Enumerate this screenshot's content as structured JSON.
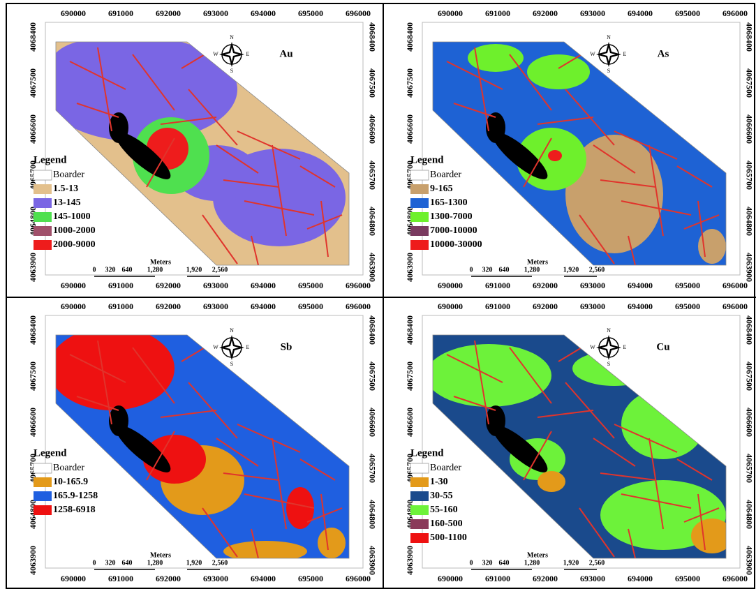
{
  "x_ticks": [
    690000,
    691000,
    692000,
    693000,
    694000,
    695000,
    696000
  ],
  "y_ticks": [
    4068400,
    4067500,
    4066600,
    4065700,
    4064800,
    4063900
  ],
  "scale_bar": {
    "unit": "Meters",
    "labels": [
      "0",
      "320",
      "640",
      "1,280",
      "1,920",
      "2,560"
    ]
  },
  "compass": {
    "north": "N",
    "east": "E",
    "south": "S",
    "west": "W"
  },
  "panels": [
    {
      "title": "Au",
      "legend": {
        "title": "Legend",
        "items": [
          {
            "label": "Boarder",
            "color": "#ffffff"
          },
          {
            "label": "1.5-13",
            "color": "#e3c08c"
          },
          {
            "label": "13-145",
            "color": "#7a66e4"
          },
          {
            "label": "145-1000",
            "color": "#4fe04f"
          },
          {
            "label": "1000-2000",
            "color": "#a0506a"
          },
          {
            "label": "2000-9000",
            "color": "#ee1c1c"
          }
        ]
      }
    },
    {
      "title": "As",
      "legend": {
        "title": "Legend",
        "items": [
          {
            "label": "Boarder",
            "color": "#ffffff"
          },
          {
            "label": "9-165",
            "color": "#c8a06c"
          },
          {
            "label": "165-1300",
            "color": "#1e62d4"
          },
          {
            "label": "1300-7000",
            "color": "#6ef02c"
          },
          {
            "label": "7000-10000",
            "color": "#7a3a60"
          },
          {
            "label": "10000-30000",
            "color": "#ee1c1c"
          }
        ]
      }
    },
    {
      "title": "Sb",
      "legend": {
        "title": "Legend",
        "items": [
          {
            "label": "Boarder",
            "color": "#ffffff"
          },
          {
            "label": "10-165.9",
            "color": "#e39a1a"
          },
          {
            "label": "165.9-1258",
            "color": "#1f5fe0"
          },
          {
            "label": "1258-6918",
            "color": "#ee1111"
          }
        ]
      }
    },
    {
      "title": "Cu",
      "legend": {
        "title": "Legend",
        "items": [
          {
            "label": "Boarder",
            "color": "#ffffff"
          },
          {
            "label": "1-30",
            "color": "#e39a1a"
          },
          {
            "label": "30-55",
            "color": "#1a4a8c"
          },
          {
            "label": "55-160",
            "color": "#6df23a"
          },
          {
            "label": "160-500",
            "color": "#8a3a5a"
          },
          {
            "label": "500-1100",
            "color": "#ee1111"
          }
        ]
      }
    }
  ]
}
